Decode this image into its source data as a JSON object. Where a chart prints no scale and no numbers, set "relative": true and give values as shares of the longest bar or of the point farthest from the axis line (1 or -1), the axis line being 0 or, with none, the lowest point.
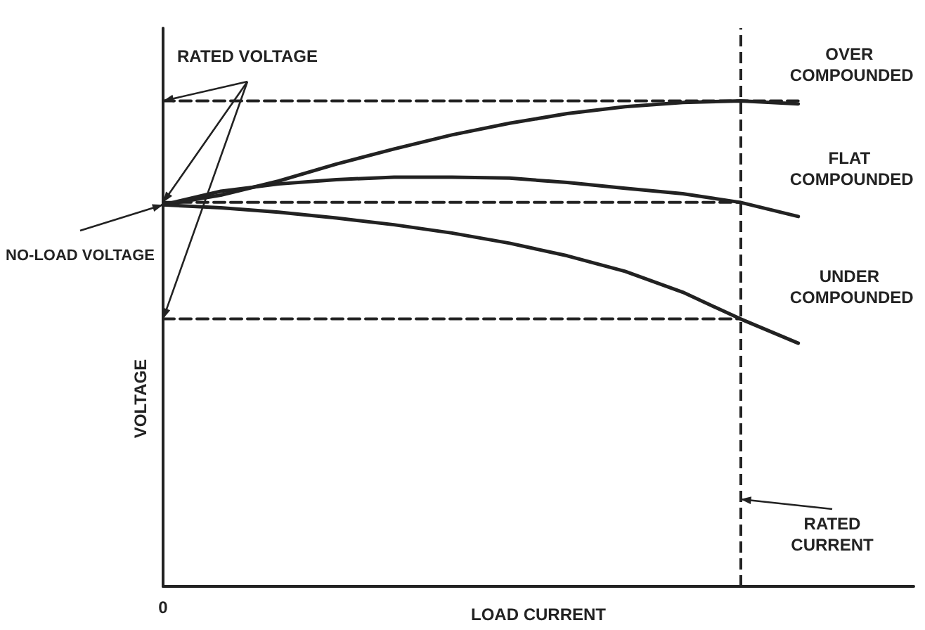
{
  "chart_data": {
    "type": "line",
    "relative": true,
    "xlabel": "LOAD CURRENT",
    "ylabel": "VOLTAGE",
    "categories": [
      null,
      null,
      null,
      null,
      null,
      null,
      null,
      null,
      null,
      null,
      null,
      null,
      null,
      null
    ],
    "series": [
      {
        "name": "OVER COMPOUNDED",
        "color": "#222222",
        "values": [
          0.786,
          0.806,
          0.835,
          0.87,
          0.901,
          0.93,
          0.954,
          0.974,
          0.988,
          0.997,
          1.0,
          0.994,
          null,
          null
        ]
      },
      {
        "name": "FLAT COMPOUNDED",
        "color": "#222222",
        "values": [
          0.786,
          0.814,
          0.829,
          0.838,
          0.843,
          0.843,
          0.841,
          0.832,
          0.82,
          0.809,
          0.791,
          0.762,
          null,
          null
        ]
      },
      {
        "name": "UNDER COMPOUNDED",
        "color": "#222222",
        "values": [
          0.786,
          0.78,
          0.771,
          0.759,
          0.745,
          0.728,
          0.707,
          0.681,
          0.649,
          0.606,
          0.551,
          0.501,
          null,
          null
        ]
      },
      {
        "color": "#222222",
        "line_style": "dashed",
        "values": [
          1.0,
          1.0,
          1.0,
          1.0,
          1.0,
          1.0,
          1.0,
          1.0,
          1.0,
          1.0,
          1.0,
          1.0,
          null,
          null
        ]
      },
      {
        "color": "#222222",
        "line_style": "dashed",
        "values": [
          0.791,
          0.791,
          0.791,
          0.791,
          0.791,
          0.791,
          0.791,
          0.791,
          0.791,
          0.791,
          0.791,
          null,
          null,
          null
        ]
      },
      {
        "color": "#222222",
        "line_style": "dashed",
        "values": [
          0.551,
          0.551,
          0.551,
          0.551,
          0.551,
          0.551,
          0.551,
          0.551,
          0.551,
          0.551,
          0.551,
          null,
          null,
          null
        ]
      }
    ],
    "annotations": [
      "RATED VOLTAGE",
      "NO-LOAD VOLTAGE",
      "RATED CURRENT",
      "0"
    ],
    "marker": "none",
    "line_style": "solid",
    "grid": false,
    "legend": false
  }
}
